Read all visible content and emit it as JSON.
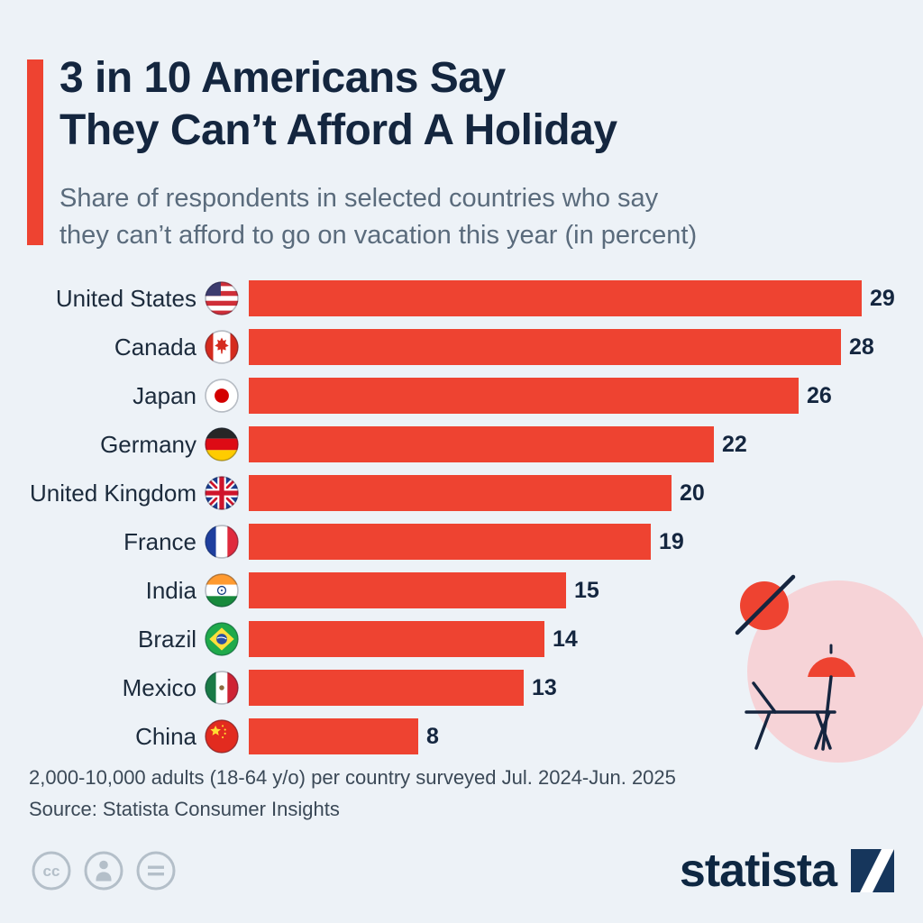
{
  "header": {
    "title_lines": [
      "3 in 10 Americans Say",
      "They Can’t Afford A Holiday"
    ],
    "subtitle_lines": [
      "Share of respondents in selected countries who say",
      "they can’t afford to go on vacation this year (in percent)"
    ],
    "accent_color": "#ee4331"
  },
  "chart_data": {
    "type": "bar",
    "orientation": "horizontal",
    "title": "3 in 10 Americans Say They Can’t Afford A Holiday",
    "subtitle": "Share of respondents in selected countries who say they can’t afford to go on vacation this year (in percent)",
    "categories": [
      "United States",
      "Canada",
      "Japan",
      "Germany",
      "United Kingdom",
      "France",
      "India",
      "Brazil",
      "Mexico",
      "China"
    ],
    "values": [
      29,
      28,
      26,
      22,
      20,
      19,
      15,
      14,
      13,
      8
    ],
    "flags": [
      "us",
      "ca",
      "jp",
      "de",
      "gb",
      "fr",
      "in",
      "br",
      "mx",
      "cn"
    ],
    "flag_icon_names": [
      "us-flag-icon",
      "canada-flag-icon",
      "japan-flag-icon",
      "germany-flag-icon",
      "uk-flag-icon",
      "france-flag-icon",
      "india-flag-icon",
      "brazil-flag-icon",
      "mexico-flag-icon",
      "china-flag-icon"
    ],
    "bar_color": "#ee4331",
    "value_label_color": "#14263f",
    "xlim": [
      0,
      29
    ],
    "grid": false,
    "legend": false
  },
  "footer": {
    "note": "2,000-10,000 adults (18-64 y/o) per country surveyed Jul. 2024-Jun. 2025",
    "source": "Source: Statista Consumer Insights",
    "brand": "statista"
  },
  "icons": {
    "license": [
      "cc-icon",
      "attribution-icon",
      "no-derivatives-icon"
    ],
    "decorative": [
      "no-sun-icon",
      "beach-umbrella-icon",
      "sun-lounger-icon"
    ],
    "brand_mark": "statista-logo-mark"
  },
  "colors": {
    "background": "#edf2f7",
    "accent_red": "#ee4331",
    "title_navy": "#14263f",
    "subtitle_gray": "#5a6b7c",
    "pink_blob": "#f6d3d7",
    "badge_gray": "#b4bfc9"
  }
}
